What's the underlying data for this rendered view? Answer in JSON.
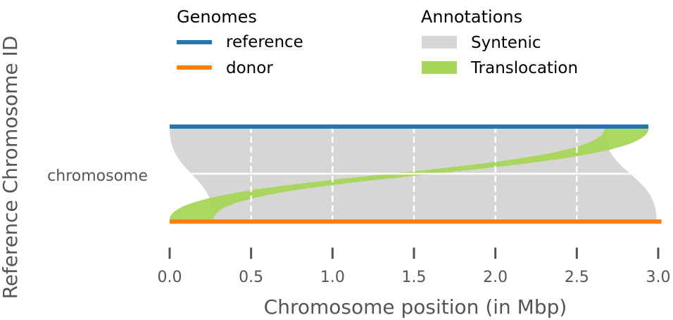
{
  "chart_data": {
    "type": "synteny",
    "xlabel": "Chromosome position (in Mbp)",
    "ylabel": "Reference Chromosome ID",
    "xlim": [
      0,
      3.0
    ],
    "xticks": [
      "0.0",
      "0.5",
      "1.0",
      "1.5",
      "2.0",
      "2.5",
      "3.0"
    ],
    "xtick_values": [
      0,
      0.5,
      1.0,
      1.5,
      2.0,
      2.5,
      3.0
    ],
    "yticks": [
      "chromosome"
    ],
    "grid": true,
    "genomes_legend": {
      "title": "Genomes",
      "items": [
        {
          "name": "reference",
          "color": "#1f77b4",
          "length": 2.94
        },
        {
          "name": "donor",
          "color": "#ff7f0e",
          "length": 3.02
        }
      ]
    },
    "annotations_legend": {
      "title": "Annotations",
      "items": [
        {
          "name": "Syntenic",
          "color": "#d6d6d6"
        },
        {
          "name": "Translocation",
          "color": "#a8d65a"
        }
      ]
    },
    "regions": [
      {
        "type": "Syntenic",
        "ref": [
          0.0,
          2.67
        ],
        "donor": [
          0.27,
          2.99
        ]
      },
      {
        "type": "Translocation",
        "ref": [
          2.67,
          2.94
        ],
        "donor": [
          0.0,
          0.27
        ]
      }
    ]
  }
}
